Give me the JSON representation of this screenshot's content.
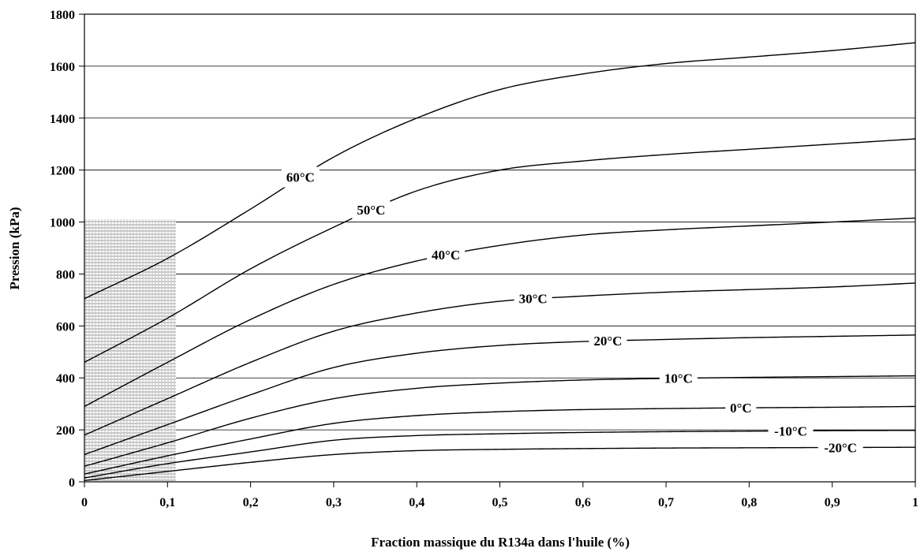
{
  "chart_data": {
    "type": "line",
    "title": "",
    "xlabel": "Fraction massique du R134a dans l'huile (%)",
    "ylabel": "Pression (kPa)",
    "xlim": [
      0,
      1
    ],
    "ylim": [
      0,
      1800
    ],
    "x_ticks": [
      "0",
      "0,1",
      "0,2",
      "0,3",
      "0,4",
      "0,5",
      "0,6",
      "0,7",
      "0,8",
      "0,9",
      "1"
    ],
    "y_ticks": [
      "0",
      "200",
      "400",
      "600",
      "800",
      "1000",
      "1200",
      "1400",
      "1600",
      "1800"
    ],
    "grid": "horizontal",
    "shaded_region": {
      "x": [
        0,
        0.11
      ],
      "y": [
        0,
        1010
      ]
    },
    "x": [
      0,
      0.1,
      0.2,
      0.3,
      0.4,
      0.5,
      0.6,
      0.7,
      0.8,
      0.9,
      1.0
    ],
    "series": [
      {
        "name": "60°C",
        "values": [
          705,
          860,
          1050,
          1250,
          1400,
          1510,
          1570,
          1610,
          1635,
          1660,
          1690
        ],
        "label_x": 0.26
      },
      {
        "name": "50°C",
        "values": [
          460,
          630,
          820,
          980,
          1120,
          1200,
          1235,
          1260,
          1280,
          1300,
          1320
        ],
        "label_x": 0.345
      },
      {
        "name": "40°C",
        "values": [
          290,
          460,
          625,
          760,
          850,
          910,
          950,
          970,
          985,
          1000,
          1015
        ],
        "label_x": 0.435
      },
      {
        "name": "30°C",
        "values": [
          180,
          320,
          460,
          580,
          650,
          695,
          715,
          730,
          740,
          750,
          765
        ],
        "label_x": 0.54
      },
      {
        "name": "20°C",
        "values": [
          105,
          220,
          335,
          440,
          495,
          525,
          540,
          548,
          555,
          560,
          565
        ],
        "label_x": 0.63
      },
      {
        "name": "10°C",
        "values": [
          60,
          150,
          245,
          320,
          360,
          380,
          392,
          398,
          402,
          405,
          408
        ],
        "label_x": 0.715
      },
      {
        "name": "0°C",
        "values": [
          30,
          100,
          165,
          225,
          255,
          270,
          278,
          282,
          285,
          287,
          290
        ],
        "label_x": 0.79
      },
      {
        "name": "-10°C",
        "values": [
          15,
          70,
          115,
          160,
          178,
          185,
          190,
          193,
          195,
          197,
          198
        ],
        "label_x": 0.85
      },
      {
        "name": "-20°C",
        "values": [
          5,
          40,
          75,
          105,
          120,
          125,
          128,
          130,
          131,
          132,
          133
        ],
        "label_x": 0.91
      }
    ]
  }
}
